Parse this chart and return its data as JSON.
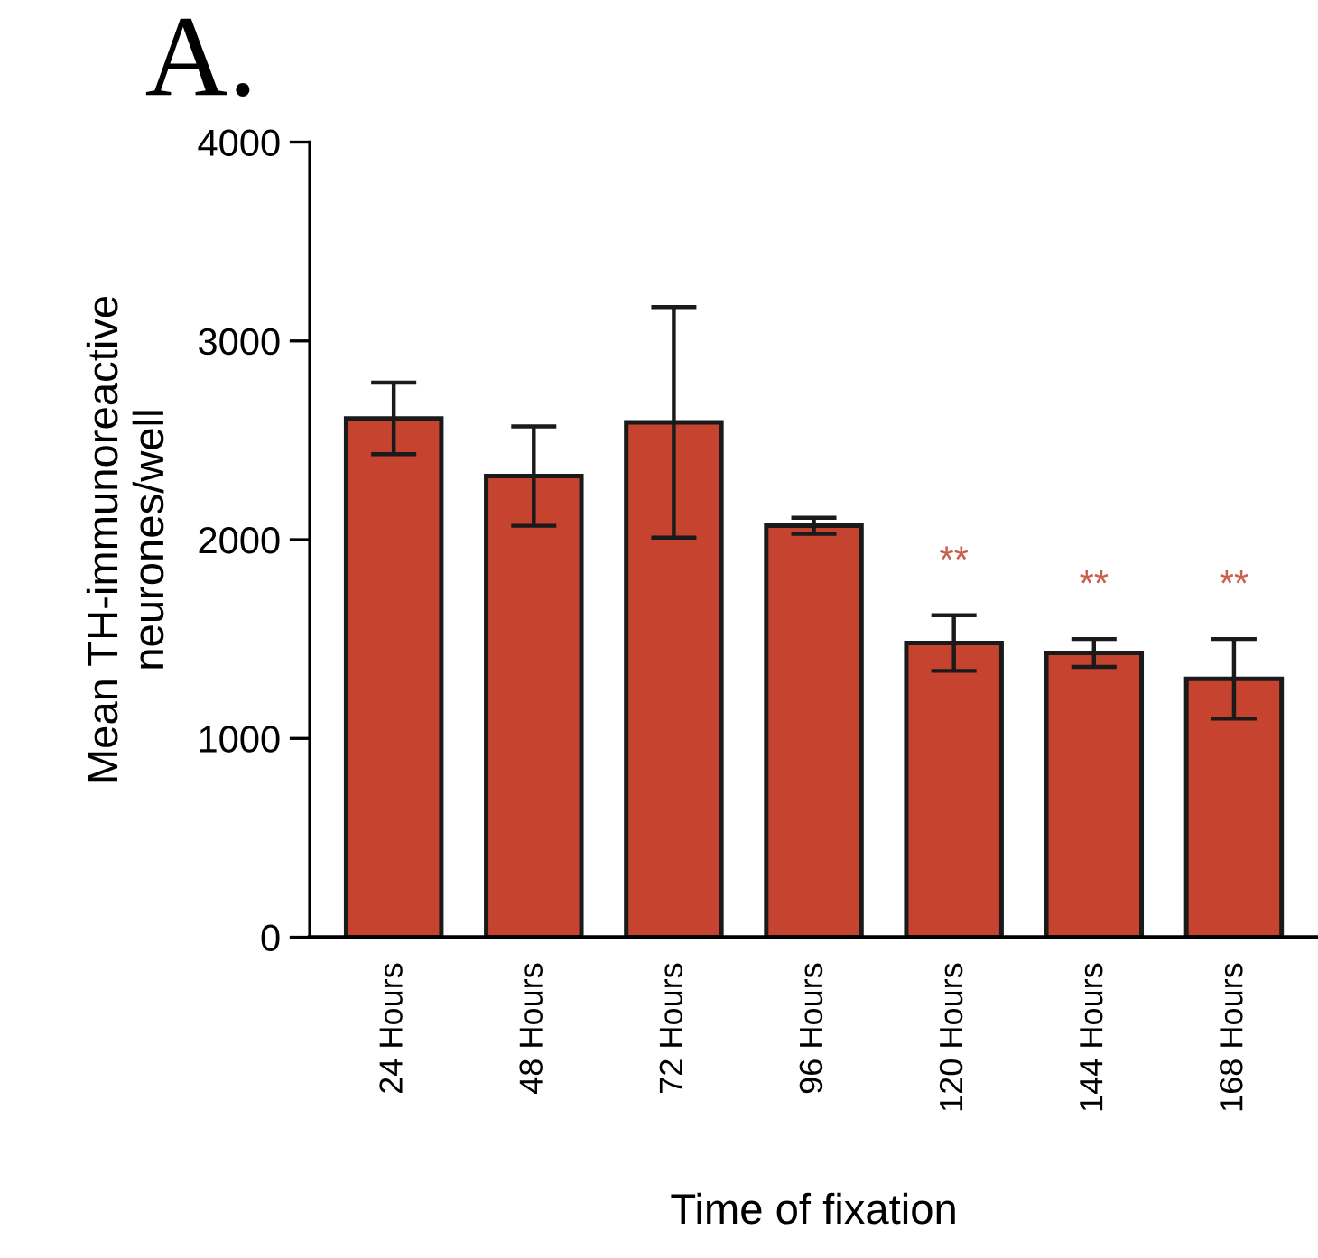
{
  "chart_data": {
    "type": "bar",
    "title": "A.",
    "xlabel": "Time of fixation",
    "ylabel": "Mean TH-immunoreactive\nneurones/well",
    "categories": [
      "24 Hours",
      "48 Hours",
      "72 Hours",
      "96 Hours",
      "120 Hours",
      "144 Hours",
      "168 Hours"
    ],
    "values": [
      2610,
      2320,
      2590,
      2070,
      1480,
      1430,
      1300
    ],
    "errors": [
      180,
      250,
      580,
      40,
      140,
      70,
      200
    ],
    "color": "#c5432f",
    "ylim": [
      0,
      4000
    ],
    "yticks": [
      0,
      1000,
      2000,
      3000,
      4000
    ],
    "grid": false,
    "annotations": [
      {
        "text": "**",
        "x": "120 Hours",
        "y": 1620
      },
      {
        "text": "**",
        "x": "144 Hours",
        "y": 1500
      },
      {
        "text": "**",
        "x": "168 Hours",
        "y": 1500
      }
    ]
  }
}
